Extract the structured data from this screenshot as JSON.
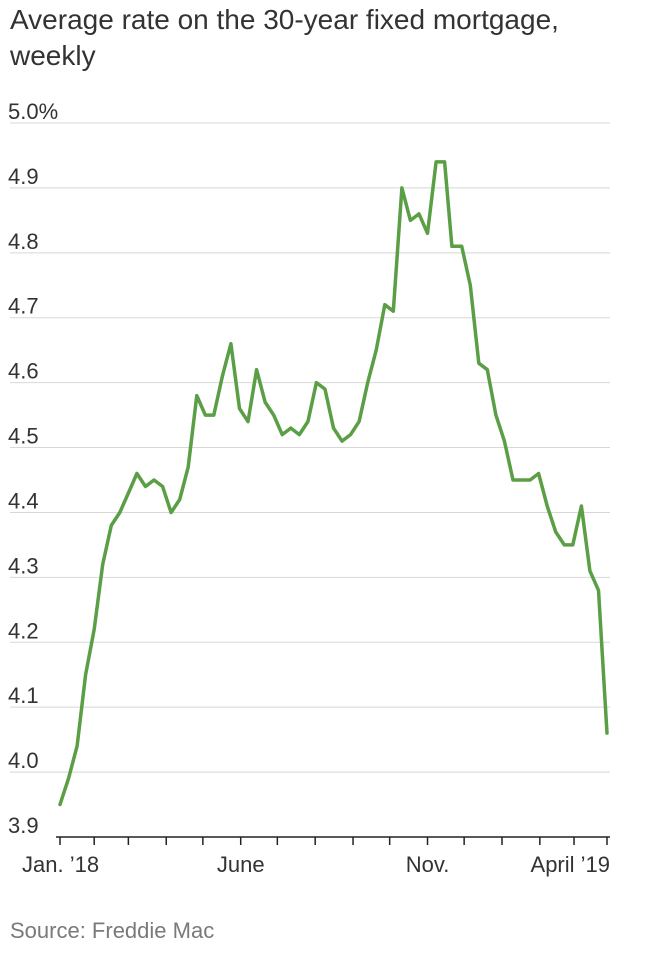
{
  "title": "Average rate on the 30-year fixed mortgage, weekly",
  "source": "Source: Freddie Mac",
  "colors": {
    "line": "#5a9e45",
    "grid": "#d8d8d8",
    "axis": "#222222",
    "text": "#333333",
    "source": "#7a7a7a"
  },
  "chart_data": {
    "type": "line",
    "title": "Average rate on the 30-year fixed mortgage, weekly",
    "xlabel": "",
    "ylabel": "",
    "ylim": [
      3.9,
      5.0
    ],
    "xlim": [
      "2018-01-04",
      "2019-03-28"
    ],
    "grid": true,
    "y_ticks": [
      "5.0%",
      "4.9",
      "4.8",
      "4.7",
      "4.6",
      "4.5",
      "4.4",
      "4.3",
      "4.2",
      "4.1",
      "4.0",
      "3.9"
    ],
    "y_tick_values": [
      5.0,
      4.9,
      4.8,
      4.7,
      4.6,
      4.5,
      4.4,
      4.3,
      4.2,
      4.1,
      4.0,
      3.9
    ],
    "x_tick_labels": [
      {
        "label": "Jan. ’18",
        "date": "2018-01-04"
      },
      {
        "label": "June",
        "date": "2018-06-01"
      },
      {
        "label": "Nov.",
        "date": "2018-11-01"
      },
      {
        "label": "April ’19",
        "date": "2019-04-01"
      }
    ],
    "minor_ticks": [
      "2018-01-04",
      "2018-02-01",
      "2018-03-01",
      "2018-04-01",
      "2018-05-01",
      "2018-06-01",
      "2018-07-01",
      "2018-08-01",
      "2018-09-01",
      "2018-10-01",
      "2018-11-01",
      "2018-12-01",
      "2019-01-01",
      "2019-02-01",
      "2019-03-01",
      "2019-03-28"
    ],
    "series": [
      {
        "x": [
          "2018-01-04",
          "2018-01-11",
          "2018-01-18",
          "2018-01-25",
          "2018-02-01",
          "2018-02-08",
          "2018-02-15",
          "2018-02-22",
          "2018-03-01",
          "2018-03-08",
          "2018-03-15",
          "2018-03-22",
          "2018-03-29",
          "2018-04-05",
          "2018-04-12",
          "2018-04-19",
          "2018-04-26",
          "2018-05-03",
          "2018-05-10",
          "2018-05-17",
          "2018-05-24",
          "2018-05-31",
          "2018-06-07",
          "2018-06-14",
          "2018-06-21",
          "2018-06-28",
          "2018-07-05",
          "2018-07-12",
          "2018-07-19",
          "2018-07-26",
          "2018-08-02",
          "2018-08-09",
          "2018-08-16",
          "2018-08-23",
          "2018-08-30",
          "2018-09-06",
          "2018-09-13",
          "2018-09-20",
          "2018-09-27",
          "2018-10-04",
          "2018-10-11",
          "2018-10-18",
          "2018-10-25",
          "2018-11-01",
          "2018-11-08",
          "2018-11-15",
          "2018-11-21",
          "2018-11-29",
          "2018-12-06",
          "2018-12-13",
          "2018-12-20",
          "2018-12-27",
          "2019-01-03",
          "2019-01-10",
          "2019-01-17",
          "2019-01-24",
          "2019-01-31",
          "2019-02-07",
          "2019-02-14",
          "2019-02-21",
          "2019-02-28",
          "2019-03-07",
          "2019-03-14",
          "2019-03-21",
          "2019-03-28"
        ],
        "values": [
          3.95,
          3.99,
          4.04,
          4.15,
          4.22,
          4.32,
          4.38,
          4.4,
          4.43,
          4.46,
          4.44,
          4.45,
          4.44,
          4.4,
          4.42,
          4.47,
          4.58,
          4.55,
          4.55,
          4.61,
          4.66,
          4.56,
          4.54,
          4.62,
          4.57,
          4.55,
          4.52,
          4.53,
          4.52,
          4.54,
          4.6,
          4.59,
          4.53,
          4.51,
          4.52,
          4.54,
          4.6,
          4.65,
          4.72,
          4.71,
          4.9,
          4.85,
          4.86,
          4.83,
          4.94,
          4.94,
          4.81,
          4.81,
          4.75,
          4.63,
          4.62,
          4.55,
          4.51,
          4.45,
          4.45,
          4.45,
          4.46,
          4.41,
          4.37,
          4.35,
          4.35,
          4.41,
          4.31,
          4.28,
          4.06
        ]
      }
    ]
  }
}
